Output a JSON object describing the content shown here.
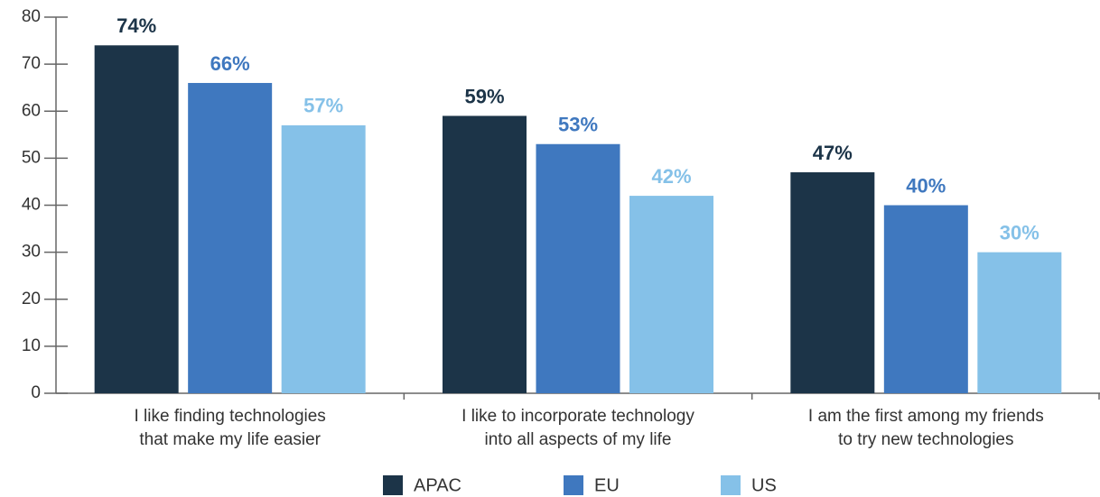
{
  "chart_data": {
    "type": "bar",
    "categories": [
      [
        "I like finding technologies",
        "that make my life easier"
      ],
      [
        "I like to incorporate technology",
        "into all aspects of my life"
      ],
      [
        "I am the first among my friends",
        "to try new technologies"
      ]
    ],
    "series": [
      {
        "name": "APAC",
        "color": "#1c3448",
        "values": [
          74,
          59,
          47
        ],
        "value_labels": [
          "74%",
          "59%",
          "47%"
        ]
      },
      {
        "name": "EU",
        "color": "#3f78bf",
        "values": [
          66,
          53,
          40
        ],
        "value_labels": [
          "66%",
          "53%",
          "40%"
        ]
      },
      {
        "name": "US",
        "color": "#85c1e8",
        "values": [
          57,
          42,
          30
        ],
        "value_labels": [
          "57%",
          "42%",
          "30%"
        ]
      }
    ],
    "ylim": [
      0,
      80
    ],
    "yticks": [
      0,
      10,
      20,
      30,
      40,
      50,
      60,
      70,
      80
    ],
    "grid": false,
    "legend": "bottom"
  }
}
